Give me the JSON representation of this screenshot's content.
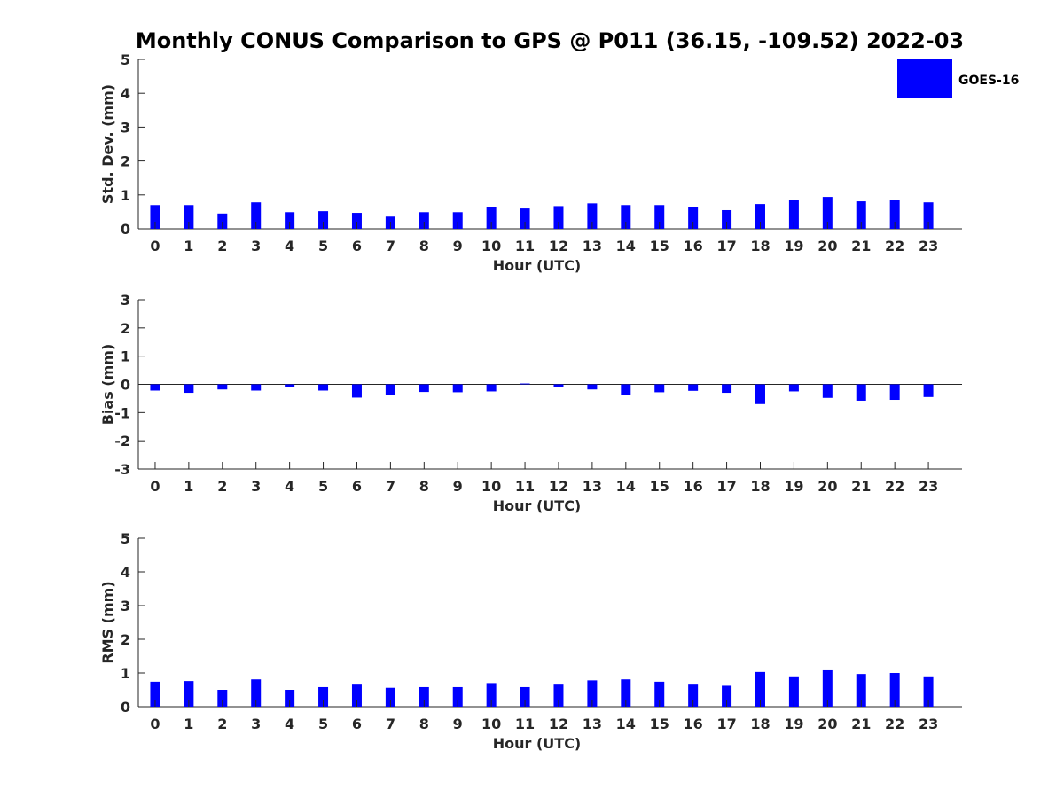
{
  "figure": {
    "title": "Monthly CONUS Comparison to GPS @ P011 (36.15, -109.52) 2022-03",
    "legend": {
      "label": "GOES-16",
      "color": "#0000ff",
      "placement": "top-right"
    }
  },
  "chart_data": [
    {
      "type": "bar",
      "name": "std-dev",
      "series": [
        {
          "name": "GOES-16",
          "color": "#0000ff",
          "values": [
            0.7,
            0.7,
            0.45,
            0.78,
            0.49,
            0.52,
            0.47,
            0.36,
            0.49,
            0.49,
            0.64,
            0.6,
            0.67,
            0.75,
            0.7,
            0.7,
            0.64,
            0.55,
            0.73,
            0.86,
            0.94,
            0.81,
            0.84,
            0.78
          ]
        }
      ],
      "categories": [
        "0",
        "1",
        "2",
        "3",
        "4",
        "5",
        "6",
        "7",
        "8",
        "9",
        "10",
        "11",
        "12",
        "13",
        "14",
        "15",
        "16",
        "17",
        "18",
        "19",
        "20",
        "21",
        "22",
        "23"
      ],
      "xlabel": "Hour (UTC)",
      "ylabel": "Std. Dev. (mm)",
      "ylim": [
        0,
        5
      ],
      "yticks": [
        "0",
        "1",
        "2",
        "3",
        "4",
        "5"
      ],
      "grid": false
    },
    {
      "type": "bar",
      "name": "bias",
      "series": [
        {
          "name": "GOES-16",
          "color": "#0000ff",
          "values": [
            -0.22,
            -0.3,
            -0.18,
            -0.22,
            -0.1,
            -0.22,
            -0.47,
            -0.38,
            -0.27,
            -0.28,
            -0.25,
            0.03,
            -0.1,
            -0.18,
            -0.38,
            -0.28,
            -0.23,
            -0.3,
            -0.7,
            -0.25,
            -0.48,
            -0.58,
            -0.55,
            -0.45
          ]
        }
      ],
      "categories": [
        "0",
        "1",
        "2",
        "3",
        "4",
        "5",
        "6",
        "7",
        "8",
        "9",
        "10",
        "11",
        "12",
        "13",
        "14",
        "15",
        "16",
        "17",
        "18",
        "19",
        "20",
        "21",
        "22",
        "23"
      ],
      "xlabel": "Hour (UTC)",
      "ylabel": "Bias (mm)",
      "ylim": [
        -3,
        3
      ],
      "yticks": [
        "-3",
        "-2",
        "-1",
        "0",
        "1",
        "2",
        "3"
      ],
      "zero_line": true,
      "grid": false
    },
    {
      "type": "bar",
      "name": "rms",
      "series": [
        {
          "name": "GOES-16",
          "color": "#0000ff",
          "values": [
            0.74,
            0.76,
            0.5,
            0.81,
            0.5,
            0.58,
            0.68,
            0.56,
            0.58,
            0.58,
            0.7,
            0.58,
            0.68,
            0.78,
            0.81,
            0.74,
            0.68,
            0.62,
            1.03,
            0.9,
            1.08,
            0.97,
            1.0,
            0.9
          ]
        }
      ],
      "categories": [
        "0",
        "1",
        "2",
        "3",
        "4",
        "5",
        "6",
        "7",
        "8",
        "9",
        "10",
        "11",
        "12",
        "13",
        "14",
        "15",
        "16",
        "17",
        "18",
        "19",
        "20",
        "21",
        "22",
        "23"
      ],
      "xlabel": "Hour (UTC)",
      "ylabel": "RMS (mm)",
      "ylim": [
        0,
        5
      ],
      "yticks": [
        "0",
        "1",
        "2",
        "3",
        "4",
        "5"
      ],
      "grid": false
    }
  ]
}
